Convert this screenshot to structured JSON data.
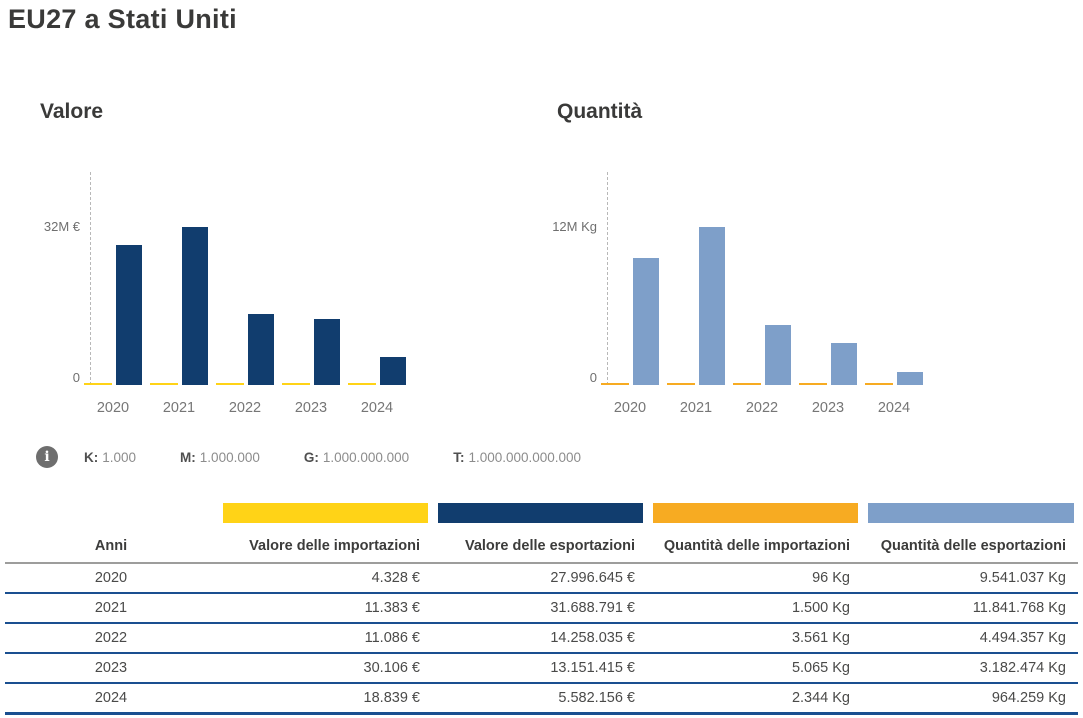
{
  "page_title": "EU27 a Stati Uniti",
  "colors": {
    "import_value": "#FFD317",
    "export_value": "#113D6E",
    "import_quantity": "#F7AB22",
    "export_quantity": "#7E9FC9",
    "row_divider": "#1A4F90",
    "header_divider": "#9D9D9C"
  },
  "chart_data": [
    {
      "type": "bar",
      "title": "Valore",
      "categories": [
        "2020",
        "2021",
        "2022",
        "2023",
        "2024"
      ],
      "series": [
        {
          "name": "Valore delle importazioni",
          "color": "#FFD317",
          "values": [
            4328,
            11383,
            11086,
            30106,
            18839
          ]
        },
        {
          "name": "Valore delle esportazioni",
          "color": "#113D6E",
          "values": [
            27996645,
            31688791,
            14258035,
            13151415,
            5582156
          ]
        }
      ],
      "y_axis": {
        "tick_label": "32M €",
        "tick_value": 32000000,
        "zero_label": "0"
      },
      "ylim": [
        0,
        42600000
      ],
      "grid": false,
      "legend_position": "none"
    },
    {
      "type": "bar",
      "title": "Quantità",
      "categories": [
        "2020",
        "2021",
        "2022",
        "2023",
        "2024"
      ],
      "series": [
        {
          "name": "Quantità delle importazioni",
          "color": "#F7AB22",
          "values": [
            96,
            1500,
            3561,
            5065,
            2344
          ]
        },
        {
          "name": "Quantità delle esportazioni",
          "color": "#7E9FC9",
          "values": [
            9541037,
            11841768,
            4494357,
            3182474,
            964259
          ]
        }
      ],
      "y_axis": {
        "tick_label": "12M Kg",
        "tick_value": 12000000,
        "zero_label": "0"
      },
      "ylim": [
        0,
        16000000
      ],
      "grid": false,
      "legend_position": "none"
    }
  ],
  "info_legend": {
    "info_icon_glyph": "i",
    "items": [
      {
        "label": "K:",
        "value": "1.000"
      },
      {
        "label": "M:",
        "value": "1.000.000"
      },
      {
        "label": "G:",
        "value": "1.000.000.000"
      },
      {
        "label": "T:",
        "value": "1.000.000.000.000"
      }
    ]
  },
  "series_legend": [
    {
      "name": "Valore delle importazioni",
      "color": "#FFD317"
    },
    {
      "name": "Valore delle esportazioni",
      "color": "#113D6E"
    },
    {
      "name": "Quantità delle importazioni",
      "color": "#F7AB22"
    },
    {
      "name": "Quantità delle esportazioni",
      "color": "#7E9FC9"
    }
  ],
  "table": {
    "columns": [
      "Anni",
      "Valore delle importazioni",
      "Valore delle esportazioni",
      "Quantità delle importazioni",
      "Quantità delle esportazioni"
    ],
    "rows": [
      [
        "2020",
        "4.328 €",
        "27.996.645 €",
        "96 Kg",
        "9.541.037 Kg"
      ],
      [
        "2021",
        "11.383 €",
        "31.688.791 €",
        "1.500 Kg",
        "11.841.768 Kg"
      ],
      [
        "2022",
        "11.086 €",
        "14.258.035 €",
        "3.561 Kg",
        "4.494.357 Kg"
      ],
      [
        "2023",
        "30.106 €",
        "13.151.415 €",
        "5.065 Kg",
        "3.182.474 Kg"
      ],
      [
        "2024",
        "18.839 €",
        "5.582.156 €",
        "2.344 Kg",
        "964.259 Kg"
      ]
    ]
  }
}
